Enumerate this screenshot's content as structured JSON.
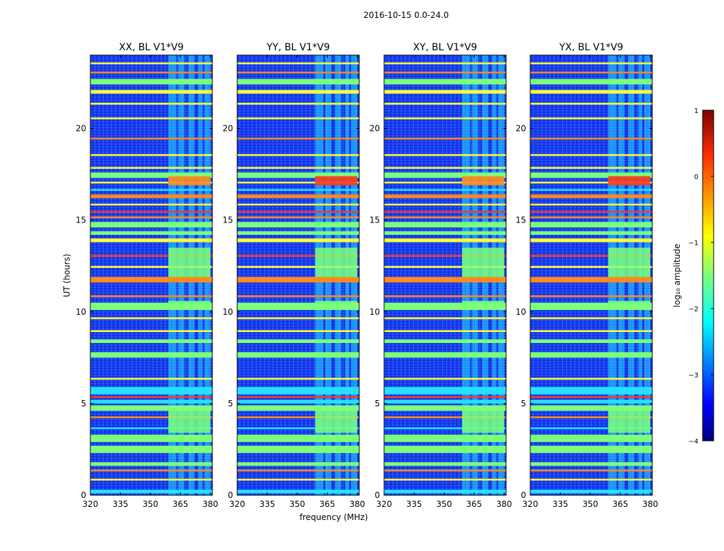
{
  "figure": {
    "suptitle": "2016-10-15 0.0-24.0"
  },
  "colors": {
    "background_band": "#1a3cf0",
    "green_band": "#7dff7a",
    "cyan_band": "#25e0ff",
    "orange_line": "#ff8a1e",
    "red_line": "#ff3a1a",
    "yellow_line": "#fffd3a"
  },
  "chart_data": {
    "type": "heatmap",
    "xlabel": "frequency (MHz)",
    "ylabel": "UT (hours)",
    "xlim": [
      320,
      381
    ],
    "ylim": [
      0,
      24
    ],
    "xticks": [
      320,
      335,
      350,
      365,
      380
    ],
    "yticks": [
      0,
      5,
      10,
      15,
      20
    ],
    "panels": [
      {
        "title": "XX, BL V1*V9",
        "hot_block": false
      },
      {
        "title": "YY, BL V1*V9",
        "hot_block": true
      },
      {
        "title": "XY, BL V1*V9",
        "hot_block": false
      },
      {
        "title": "YX, BL V1*V9",
        "hot_block": true
      }
    ],
    "rfi_band_mhz": [
      359,
      380
    ],
    "rfi_columns_mhz": [
      [
        359,
        363
      ],
      [
        364,
        367
      ],
      [
        369,
        372
      ],
      [
        374,
        376
      ],
      [
        377,
        380
      ]
    ],
    "horizontal_bands": [
      {
        "t0": 0.1,
        "t1": 0.3,
        "level": "cyan"
      },
      {
        "t0": 0.8,
        "t1": 0.9,
        "level": "yellow"
      },
      {
        "t0": 1.3,
        "t1": 1.4,
        "level": "orange"
      },
      {
        "t0": 1.6,
        "t1": 1.8,
        "level": "green"
      },
      {
        "t0": 2.3,
        "t1": 2.7,
        "level": "green"
      },
      {
        "t0": 2.9,
        "t1": 3.3,
        "level": "green"
      },
      {
        "t0": 3.6,
        "t1": 3.7,
        "level": "cyan"
      },
      {
        "t0": 4.2,
        "t1": 4.3,
        "level": "orange"
      },
      {
        "t0": 4.6,
        "t1": 4.9,
        "level": "green"
      },
      {
        "t0": 5.0,
        "t1": 5.2,
        "level": "cyan"
      },
      {
        "t0": 5.3,
        "t1": 5.4,
        "level": "red"
      },
      {
        "t0": 5.5,
        "t1": 5.9,
        "level": "cyan"
      },
      {
        "t0": 6.3,
        "t1": 6.4,
        "level": "yellow"
      },
      {
        "t0": 7.5,
        "t1": 7.8,
        "level": "green"
      },
      {
        "t0": 8.3,
        "t1": 8.5,
        "level": "green"
      },
      {
        "t0": 8.9,
        "t1": 9.0,
        "level": "yellow"
      },
      {
        "t0": 9.6,
        "t1": 9.7,
        "level": "yellow"
      },
      {
        "t0": 10.1,
        "t1": 10.5,
        "level": "green"
      },
      {
        "t0": 10.8,
        "t1": 10.9,
        "level": "orange"
      },
      {
        "t0": 11.6,
        "t1": 11.9,
        "level": "orange"
      },
      {
        "t0": 12.4,
        "t1": 12.5,
        "level": "yellow"
      },
      {
        "t0": 13.0,
        "t1": 13.1,
        "level": "red"
      },
      {
        "t0": 13.8,
        "t1": 14.0,
        "level": "yellow"
      },
      {
        "t0": 14.2,
        "t1": 14.4,
        "level": "green"
      },
      {
        "t0": 14.6,
        "t1": 14.9,
        "level": "green"
      },
      {
        "t0": 15.1,
        "t1": 15.2,
        "level": "orange"
      },
      {
        "t0": 15.4,
        "t1": 15.5,
        "level": "red"
      },
      {
        "t0": 15.8,
        "t1": 15.9,
        "level": "yellow"
      },
      {
        "t0": 16.2,
        "t1": 16.4,
        "level": "orange"
      },
      {
        "t0": 16.6,
        "t1": 16.7,
        "level": "cyan"
      },
      {
        "t0": 17.0,
        "t1": 17.1,
        "level": "yellow"
      },
      {
        "t0": 17.3,
        "t1": 17.6,
        "level": "green"
      },
      {
        "t0": 17.8,
        "t1": 17.9,
        "level": "yellow"
      },
      {
        "t0": 18.5,
        "t1": 18.6,
        "level": "yellow"
      },
      {
        "t0": 19.4,
        "t1": 19.5,
        "level": "orange"
      },
      {
        "t0": 20.5,
        "t1": 20.6,
        "level": "yellow"
      },
      {
        "t0": 21.3,
        "t1": 21.4,
        "level": "yellow"
      },
      {
        "t0": 21.9,
        "t1": 22.1,
        "level": "yellow"
      },
      {
        "t0": 22.4,
        "t1": 22.7,
        "level": "green"
      },
      {
        "t0": 23.0,
        "t1": 23.1,
        "level": "orange"
      },
      {
        "t0": 23.5,
        "t1": 23.6,
        "level": "yellow"
      }
    ],
    "colorbar": {
      "label": "log₁₀ amplitude",
      "range": [
        -4,
        1
      ],
      "ticks": [
        "1",
        "0",
        "−1",
        "−2",
        "−3",
        "−4"
      ],
      "colormap": "jet"
    }
  }
}
